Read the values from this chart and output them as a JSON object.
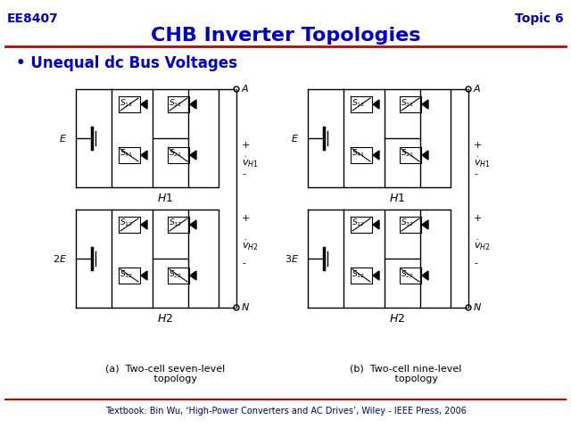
{
  "title": "CHB Inverter Topologies",
  "top_left": "EE8407",
  "top_right": "Topic 6",
  "bullet": "Unequal dc Bus Voltages",
  "footer": "Textbook: Bin Wu, ‘High-Power Converters and AC Drives’, Wiley - IEEE Press, 2006",
  "caption_a": "(a)  Two-cell seven-level\n       topology",
  "caption_b": "(b)  Two-cell nine-level\n       topology",
  "bg_color": "#FFFFFF",
  "title_color": "#0000CC",
  "header_color": "#0000CC",
  "line_color": "#CC0000",
  "circuit_color": "#000000",
  "footer_color": "#000080"
}
